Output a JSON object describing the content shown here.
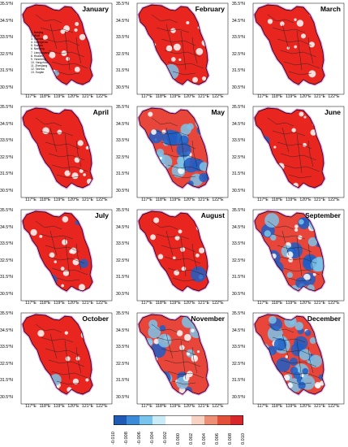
{
  "panels": [
    {
      "title": "January",
      "dominant": "red",
      "neg_fraction": 0.05
    },
    {
      "title": "February",
      "dominant": "red",
      "neg_fraction": 0.05
    },
    {
      "title": "March",
      "dominant": "red",
      "neg_fraction": 0.05
    },
    {
      "title": "April",
      "dominant": "red",
      "neg_fraction": 0.02
    },
    {
      "title": "May",
      "dominant": "mixed",
      "neg_fraction": 0.45
    },
    {
      "title": "June",
      "dominant": "red",
      "neg_fraction": 0.04
    },
    {
      "title": "July",
      "dominant": "red",
      "neg_fraction": 0.1
    },
    {
      "title": "August",
      "dominant": "red",
      "neg_fraction": 0.08
    },
    {
      "title": "September",
      "dominant": "mixed",
      "neg_fraction": 0.45
    },
    {
      "title": "October",
      "dominant": "red",
      "neg_fraction": 0.04
    },
    {
      "title": "November",
      "dominant": "mixed",
      "neg_fraction": 0.4
    },
    {
      "title": "December",
      "dominant": "mixed",
      "neg_fraction": 0.55
    }
  ],
  "y_ticks": [
    "35.5°N",
    "34.5°N",
    "33.5°N",
    "32.5°N",
    "31.5°N",
    "30.5°N"
  ],
  "x_ticks": [
    "117°E",
    "118°E",
    "119°E",
    "120°E",
    "121°E",
    "122°E"
  ],
  "legend_items": [
    "1. Nanjing",
    "2. Wuxi",
    "3. Xuzhou",
    "4. Changzhou",
    "5. Suzhou",
    "6. Nantong",
    "7. Lianyungang",
    "8. Huaian",
    "9. Yancheng",
    "10. Yangzhou",
    "11. Zhenjiang",
    "12. Taizhou",
    "13. Suqian"
  ],
  "colorbar": {
    "ticks": [
      "-0.010",
      "-0.008",
      "-0.006",
      "-0.004",
      "-0.002",
      "0.000",
      "0.002",
      "0.004",
      "0.006",
      "0.008",
      "0.010"
    ],
    "colors": [
      "#1f5bb4",
      "#3b8bd8",
      "#79c4ec",
      "#c9ecf7",
      "#ffffff",
      "#ffffff",
      "#f7d3c4",
      "#ec8f74",
      "#e2503a",
      "#d8262b"
    ]
  },
  "colors": {
    "positive": "#e8261f",
    "negative": "#1d5ec7",
    "light": "#ffffff",
    "outline": "#e88ee8"
  }
}
